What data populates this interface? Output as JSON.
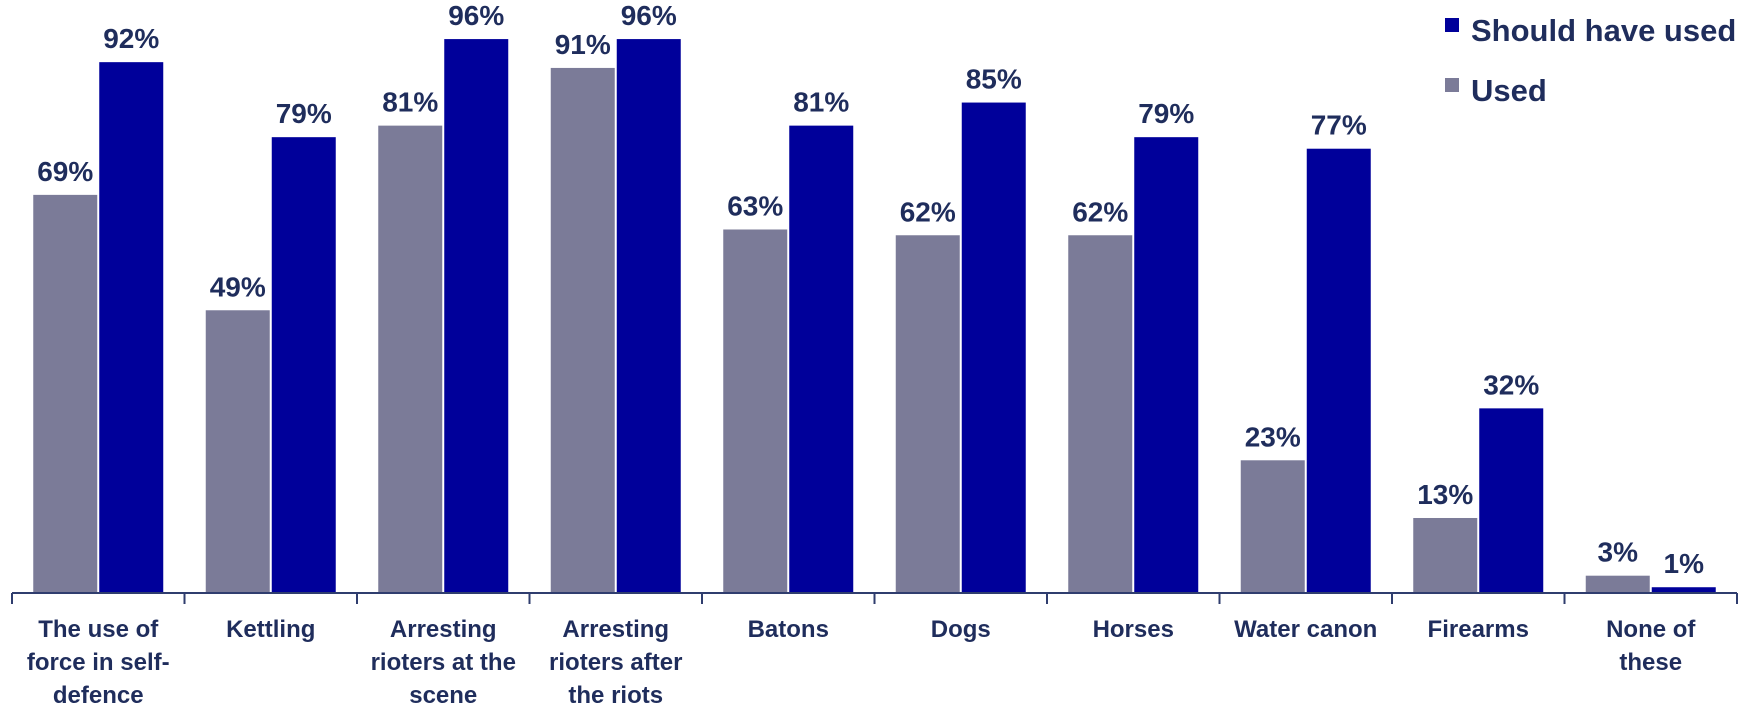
{
  "chart_data": {
    "type": "bar",
    "categories": [
      [
        "The use of",
        "force in self-",
        "defence"
      ],
      [
        "Kettling"
      ],
      [
        "Arresting",
        "rioters at the",
        "scene"
      ],
      [
        "Arresting",
        "rioters after",
        "the riots"
      ],
      [
        "Batons"
      ],
      [
        "Dogs"
      ],
      [
        "Horses"
      ],
      [
        "Water canon"
      ],
      [
        "Firearms"
      ],
      [
        "None of",
        "these"
      ]
    ],
    "series": [
      {
        "name": "Used",
        "color": "#7b7b98",
        "values": [
          69,
          49,
          81,
          91,
          63,
          62,
          62,
          23,
          13,
          3
        ],
        "labels": [
          "69%",
          "49%",
          "81%",
          "91%",
          "63%",
          "62%",
          "62%",
          "23%",
          "13%",
          "3%"
        ]
      },
      {
        "name": "Should have used",
        "color": "#00009a",
        "values": [
          92,
          79,
          96,
          96,
          81,
          85,
          79,
          77,
          32,
          1
        ],
        "labels": [
          "92%",
          "79%",
          "96%",
          "96%",
          "81%",
          "85%",
          "79%",
          "77%",
          "32%",
          "1%"
        ]
      }
    ],
    "legend": {
      "position": "top-right",
      "order": [
        "Should have used",
        "Used"
      ]
    },
    "ylim": [
      0,
      100
    ],
    "grid": false,
    "axis_color": "#2f3d6e",
    "label_color": "#1f2d5c"
  }
}
